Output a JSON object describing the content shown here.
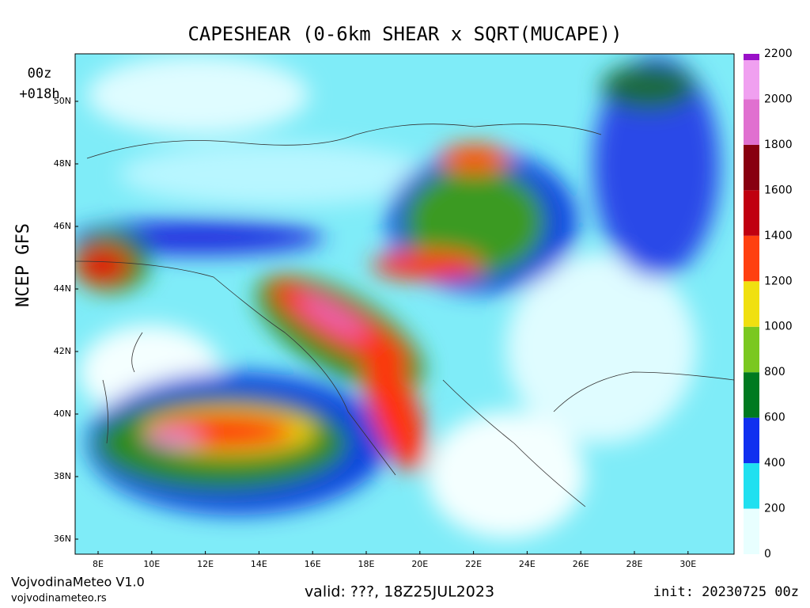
{
  "header": {
    "title": "CAPESHEAR (0-6km SHEAR x SQRT(MUCAPE))",
    "run": "00z",
    "lead": "+018h",
    "model": "NCEP GFS"
  },
  "map": {
    "lat_labels": [
      "50N",
      "48N",
      "46N",
      "44N",
      "42N",
      "40N",
      "38N",
      "36N"
    ],
    "lon_labels": [
      "8E",
      "10E",
      "12E",
      "14E",
      "16E",
      "18E",
      "20E",
      "22E",
      "24E",
      "26E",
      "28E",
      "30E"
    ]
  },
  "colorbar": {
    "ticks": [
      0,
      200,
      400,
      600,
      800,
      1000,
      1200,
      1400,
      1600,
      1800,
      2000,
      2200
    ],
    "colors": [
      "#e8ffff",
      "#20e0f0",
      "#1030f0",
      "#007a20",
      "#7ac820",
      "#f0e010",
      "#ff4010",
      "#c00010",
      "#880010",
      "#e070d0",
      "#f0a0f0",
      "#9a10c8"
    ]
  },
  "footer": {
    "brand": "VojvodinaMeteo V1.0",
    "site": "vojvodinameteo.rs",
    "valid": "valid: ???, 18Z25JUL2023",
    "init": "init: 20230725 00z"
  }
}
